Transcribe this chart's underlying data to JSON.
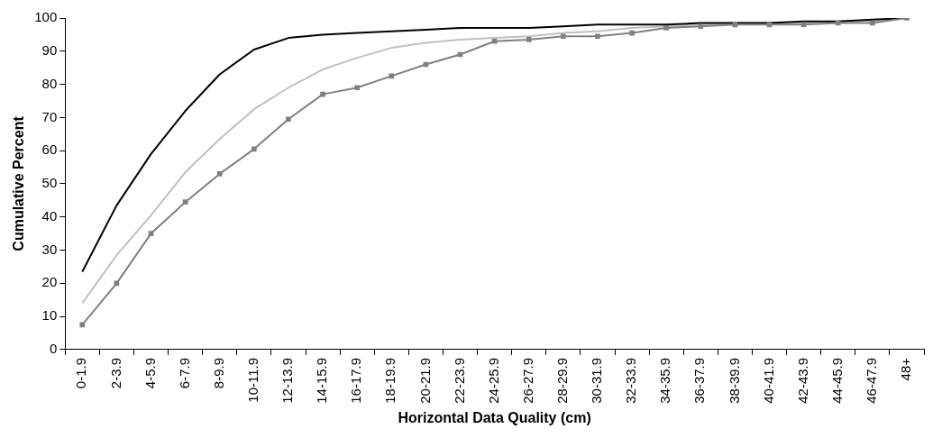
{
  "chart_data": {
    "type": "line",
    "xlabel": "Horizontal Data Quality (cm)",
    "ylabel": "Cumulative Percent",
    "categories": [
      "0-1.9",
      "2-3.9",
      "4-5.9",
      "6-7.9",
      "8-9.9",
      "10-11.9",
      "12-13.9",
      "14-15.9",
      "16-17.9",
      "18-19.9",
      "20-21.9",
      "22-23.9",
      "24-25.9",
      "26-27.9",
      "28-29.9",
      "30-31.9",
      "32-33.9",
      "34-35.9",
      "36-37.9",
      "38-39.9",
      "40-41.9",
      "42-43.9",
      "44-45.9",
      "46-47.9",
      "48+"
    ],
    "series": [
      {
        "color": "#000000",
        "marker": "none",
        "values": [
          23.5,
          43.5,
          59,
          72,
          83,
          90.5,
          94,
          95,
          95.5,
          96,
          96.5,
          97,
          97,
          97,
          97.5,
          98,
          98,
          98,
          98.5,
          98.5,
          98.5,
          99,
          99,
          99.5,
          100
        ]
      },
      {
        "color": "#c0c0c0",
        "marker": "none",
        "values": [
          14,
          28.5,
          40.5,
          53.5,
          63.5,
          72.5,
          79,
          84.5,
          88,
          91,
          92.5,
          93.5,
          94,
          94.5,
          95.5,
          96,
          97,
          97.5,
          98,
          98.5,
          98.5,
          98.5,
          99,
          99,
          100
        ]
      },
      {
        "color": "#808080",
        "marker": "square",
        "values": [
          7.5,
          20,
          35,
          44.5,
          53,
          60.5,
          69.5,
          77,
          79,
          82.5,
          86,
          89,
          93,
          93.5,
          94.5,
          94.5,
          95.5,
          97,
          97.5,
          98,
          98,
          98,
          98.5,
          98.5,
          100
        ]
      }
    ],
    "ylim": [
      0,
      100
    ],
    "yticks": [
      0,
      10,
      20,
      30,
      40,
      50,
      60,
      70,
      80,
      90,
      100
    ],
    "grid": false,
    "legend": false
  }
}
